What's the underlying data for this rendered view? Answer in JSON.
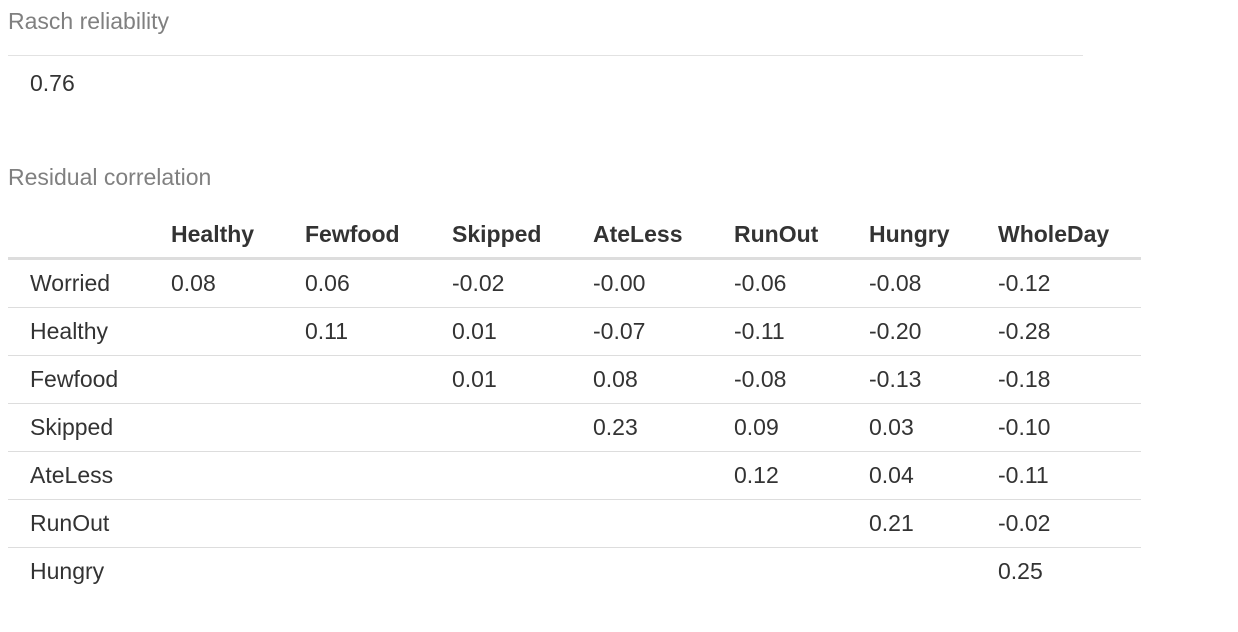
{
  "reliability": {
    "title": "Rasch reliability",
    "value": "0.76"
  },
  "residual": {
    "title": "Residual correlation",
    "columns": [
      "",
      "Healthy",
      "Fewfood",
      "Skipped",
      "AteLess",
      "RunOut",
      "Hungry",
      "WholeDay"
    ],
    "rows": [
      [
        "Worried",
        "0.08",
        "0.06",
        "-0.02",
        "-0.00",
        "-0.06",
        "-0.08",
        "-0.12"
      ],
      [
        "Healthy",
        "",
        "0.11",
        "0.01",
        "-0.07",
        "-0.11",
        "-0.20",
        "-0.28"
      ],
      [
        "Fewfood",
        "",
        "",
        "0.01",
        "0.08",
        "-0.08",
        "-0.13",
        "-0.18"
      ],
      [
        "Skipped",
        "",
        "",
        "",
        "0.23",
        "0.09",
        "0.03",
        "-0.10"
      ],
      [
        "AteLess",
        "",
        "",
        "",
        "",
        "0.12",
        "0.04",
        "-0.11"
      ],
      [
        "RunOut",
        "",
        "",
        "",
        "",
        "",
        "0.21",
        "-0.02"
      ],
      [
        "Hungry",
        "",
        "",
        "",
        "",
        "",
        "",
        "0.25"
      ]
    ]
  }
}
